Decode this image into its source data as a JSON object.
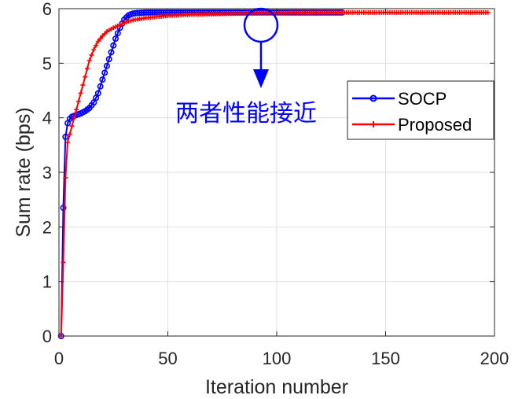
{
  "chart_data": {
    "type": "line",
    "xlabel": "Iteration number",
    "ylabel": "Sum rate (bps)",
    "xlim": [
      0,
      200
    ],
    "ylim": [
      0,
      6
    ],
    "xticks": [
      0,
      50,
      100,
      150,
      200
    ],
    "yticks": [
      0,
      1,
      2,
      3,
      4,
      5,
      6
    ],
    "grid": true,
    "legend_position": "right",
    "annotation": {
      "text": "两者性能接近",
      "x": 94,
      "y": 5.93,
      "color": "#0000ff"
    },
    "series": [
      {
        "name": "SOCP",
        "color": "#0000ff",
        "marker": "circle",
        "x": [
          1,
          2,
          3,
          4,
          5,
          6,
          8,
          10,
          12,
          14,
          16,
          18,
          20,
          22,
          24,
          26,
          28,
          30,
          32,
          34,
          36,
          40,
          45,
          50,
          60,
          70,
          80,
          90,
          100,
          110,
          120,
          130
        ],
        "y": [
          0.0,
          2.35,
          3.65,
          3.9,
          3.98,
          4.02,
          4.05,
          4.08,
          4.12,
          4.18,
          4.28,
          4.45,
          4.7,
          4.95,
          5.2,
          5.45,
          5.65,
          5.8,
          5.88,
          5.91,
          5.92,
          5.93,
          5.93,
          5.93,
          5.93,
          5.93,
          5.93,
          5.93,
          5.93,
          5.93,
          5.93,
          5.93
        ]
      },
      {
        "name": "Proposed",
        "color": "#ff0000",
        "marker": "plus",
        "x": [
          1,
          2,
          3,
          4,
          5,
          6,
          7,
          8,
          9,
          10,
          12,
          14,
          16,
          18,
          20,
          22,
          25,
          28,
          30,
          32,
          35,
          40,
          45,
          50,
          60,
          70,
          80,
          90,
          100,
          120,
          140,
          160,
          180,
          197
        ],
        "y": [
          0.0,
          1.35,
          2.9,
          3.55,
          3.7,
          3.85,
          4.0,
          4.15,
          4.3,
          4.45,
          4.75,
          5.05,
          5.25,
          5.4,
          5.5,
          5.58,
          5.65,
          5.7,
          5.74,
          5.77,
          5.8,
          5.83,
          5.85,
          5.87,
          5.89,
          5.9,
          5.91,
          5.92,
          5.92,
          5.93,
          5.93,
          5.93,
          5.93,
          5.93
        ]
      }
    ]
  }
}
